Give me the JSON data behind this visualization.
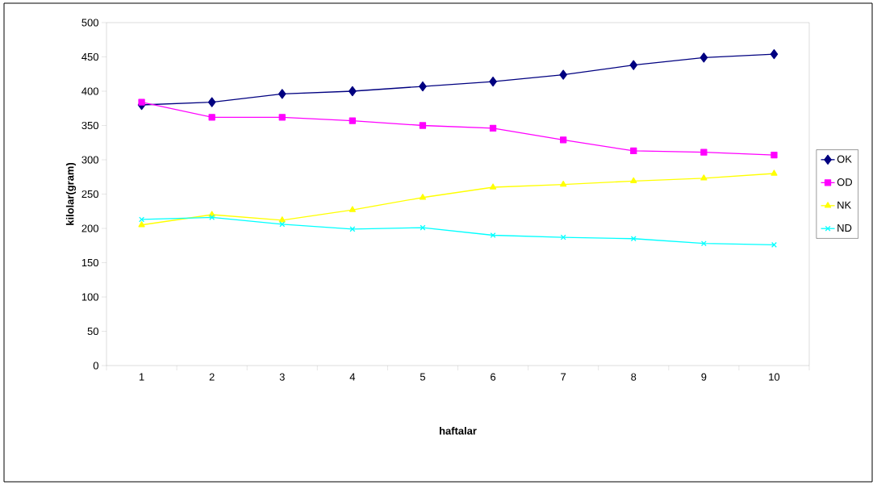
{
  "chart_data": {
    "type": "line",
    "xlabel": "haftalar",
    "ylabel": "kilolar(gram)",
    "categories": [
      "1",
      "2",
      "3",
      "4",
      "5",
      "6",
      "7",
      "8",
      "9",
      "10"
    ],
    "series": [
      {
        "name": "OK",
        "color": "#000080",
        "marker": "diamond",
        "values": [
          380,
          384,
          396,
          400,
          407,
          414,
          424,
          438,
          449,
          454
        ]
      },
      {
        "name": "OD",
        "color": "#ff00ff",
        "marker": "square",
        "values": [
          384,
          362,
          362,
          357,
          350,
          346,
          329,
          313,
          311,
          307
        ]
      },
      {
        "name": "NK",
        "color": "#ffff00",
        "marker": "triangle",
        "values": [
          205,
          220,
          212,
          227,
          245,
          260,
          264,
          269,
          273,
          280
        ]
      },
      {
        "name": "ND",
        "color": "#00ffff",
        "marker": "cross",
        "values": [
          213,
          216,
          206,
          199,
          201,
          190,
          187,
          185,
          178,
          176
        ]
      }
    ],
    "ylim": [
      0,
      500
    ],
    "yticks": [
      0,
      50,
      100,
      150,
      200,
      250,
      300,
      350,
      400,
      450,
      500
    ],
    "legend": "right"
  }
}
